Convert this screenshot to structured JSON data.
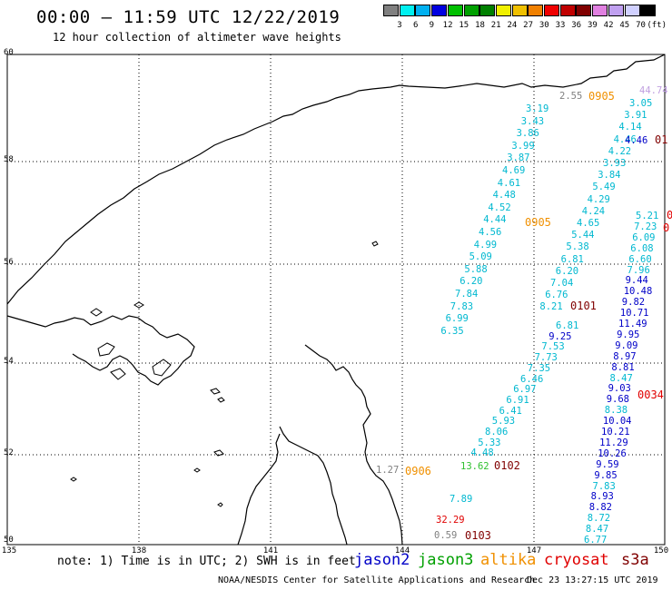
{
  "title": "00:00 – 11:59 UTC 12/22/2019",
  "subtitle": "12 hour collection of altimeter wave heights",
  "legend": {
    "colors": [
      "#808080",
      "#00f0f0",
      "#00b0f0",
      "#0000e0",
      "#00c000",
      "#00a000",
      "#008000",
      "#f0f000",
      "#f0c000",
      "#f08000",
      "#f00000",
      "#c00000",
      "#800000",
      "#e080e0",
      "#c0a0f0",
      "#d0d0ff",
      "#000000"
    ],
    "ticks": [
      "3",
      "6",
      "9",
      "12",
      "15",
      "18",
      "21",
      "24",
      "27",
      "30",
      "33",
      "36",
      "39",
      "42",
      "45",
      "70",
      "(ft)"
    ]
  },
  "lat_labels": [
    "60",
    "58",
    "56",
    "54",
    "52",
    "50"
  ],
  "lon_labels": [
    "135",
    "138",
    "141",
    "144",
    "147",
    "150"
  ],
  "note": "note: 1) Time is in UTC; 2) SWH is in feet",
  "satellites": [
    {
      "name": "jason2",
      "color": "#0000c8"
    },
    {
      "name": "jason3",
      "color": "#00a000"
    },
    {
      "name": "altika",
      "color": "#f09000"
    },
    {
      "name": "cryosat",
      "color": "#e00000"
    },
    {
      "name": "s3a",
      "color": "#800000"
    }
  ],
  "credit": "NOAA/NESDIS Center for Satellite Applications and Research",
  "timestamp": "Dec 23 13:27:15 UTC 2019",
  "track_colors": {
    "cyan": "#00b8d0",
    "blue": "#0000c8",
    "green": "#30c030",
    "orange": "#f09000",
    "red": "#e00000",
    "maroon": "#800000",
    "gray": "#808080",
    "lavender": "#c0a0e0"
  },
  "track_a": [
    "3.19",
    "3.43",
    "3.86",
    "3.99",
    "3.87",
    "4.69",
    "4.61",
    "4.48",
    "4.52",
    "4.44",
    "4.56",
    "4.99",
    "5.09",
    "5.88",
    "6.20",
    "7.84",
    "7.83",
    "6.99",
    "6.35"
  ],
  "track_b": [
    "3.05",
    "3.91",
    "4.14",
    "4.46",
    "4.22",
    "3.93",
    "3.84",
    "5.49",
    "4.29",
    "4.24",
    "4.65",
    "5.44",
    "5.38",
    "6.81",
    "6.20",
    "7.04",
    "6.76",
    "8.21"
  ],
  "track_b_lower": [
    "6.81",
    "9.25",
    "7.53",
    "7.73",
    "7.35",
    "6.46",
    "6.97",
    "6.91",
    "6.41",
    "5.93",
    "8.06",
    "5.33",
    "4.48"
  ],
  "track_c": [
    "5.21",
    "7.23",
    "6.09",
    "6.08",
    "6.60",
    "7.96",
    "9.44",
    "10.48",
    "9.82",
    "10.71",
    "11.49",
    "9.95",
    "9.09",
    "8.97",
    "8.81",
    "8.47",
    "9.03",
    "9.68",
    "8.38",
    "10.04",
    "10.21",
    "11.29",
    "10.26",
    "9.59",
    "9.85",
    "7.83",
    "8.93",
    "8.82",
    "8.72",
    "8.47",
    "6.77"
  ],
  "misc_values": {
    "top_gray": "2.55",
    "top_lavender": "44.74",
    "left_gray": "1.27",
    "green_val": "13.62",
    "blue_low": "7.89",
    "red_low": "32.29",
    "gray_low": "0.59",
    "extra_blue": "4.46"
  },
  "times": {
    "t_top": "0905",
    "t_mid": "0905",
    "t_101": "0101",
    "t_01": "01",
    "t_34": "0034",
    "t_906": "0906",
    "t_102": "0102",
    "t_103": "0103",
    "t_edge1": "0",
    "t_edge2": "0"
  }
}
